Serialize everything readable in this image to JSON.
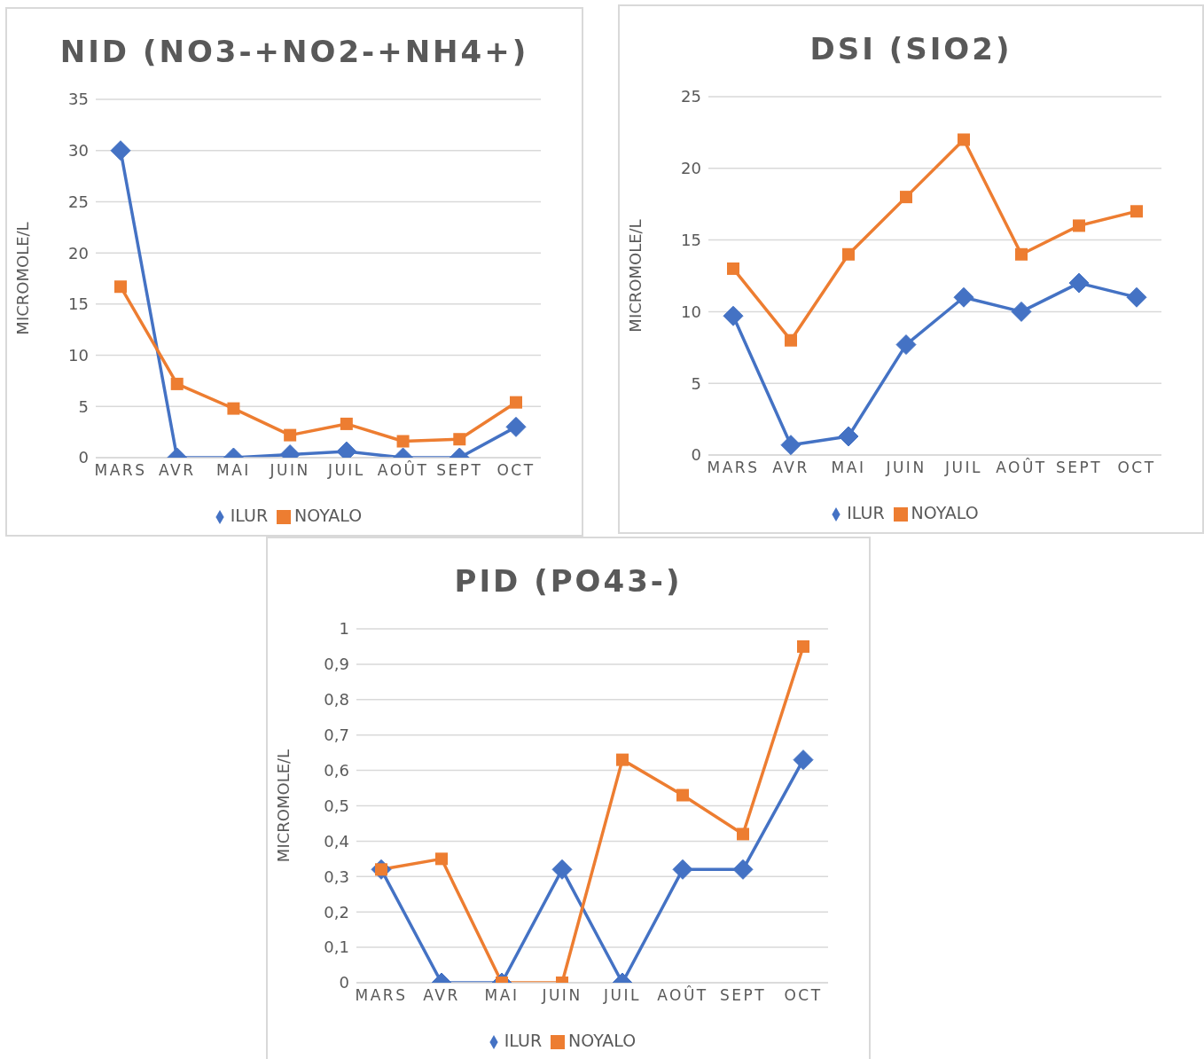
{
  "chart_data": [
    {
      "type": "line",
      "title": "NID (NO3-+NO2-+NH4+)",
      "ylabel": "MICROMOLE/L",
      "categories": [
        "MARS",
        "AVR",
        "MAI",
        "JUIN",
        "JUIL",
        "AOÛT",
        "SEPT",
        "OCT"
      ],
      "series": [
        {
          "name": "ILUR",
          "color": "#4472c4",
          "marker": "diamond",
          "values": [
            30,
            0,
            0,
            0.3,
            0.6,
            0,
            0,
            3.0
          ]
        },
        {
          "name": "NOYALO",
          "color": "#ed7d31",
          "marker": "square",
          "values": [
            16.7,
            7.2,
            4.8,
            2.2,
            3.3,
            1.6,
            1.8,
            5.4
          ]
        }
      ],
      "ylim": [
        0,
        35
      ],
      "yticks": [
        0,
        5,
        10,
        15,
        20,
        25,
        30,
        35
      ],
      "grid": "y",
      "legend": "bottom"
    },
    {
      "type": "line",
      "title": "DSI (SIO2)",
      "ylabel": "MICROMOLE/L",
      "categories": [
        "MARS",
        "AVR",
        "MAI",
        "JUIN",
        "JUIL",
        "AOÛT",
        "SEPT",
        "OCT"
      ],
      "series": [
        {
          "name": "ILUR",
          "color": "#4472c4",
          "marker": "diamond",
          "values": [
            9.7,
            0.7,
            1.3,
            7.7,
            11,
            10,
            12,
            11
          ]
        },
        {
          "name": "NOYALO",
          "color": "#ed7d31",
          "marker": "square",
          "values": [
            13,
            8,
            14,
            18,
            22,
            14,
            16,
            17
          ]
        }
      ],
      "ylim": [
        0,
        25
      ],
      "yticks": [
        0,
        5,
        10,
        15,
        20,
        25
      ],
      "grid": "y",
      "legend": "bottom"
    },
    {
      "type": "line",
      "title": "PID (PO43-)",
      "ylabel": "MICROMOLE/L",
      "categories": [
        "MARS",
        "AVR",
        "MAI",
        "JUIN",
        "JUIL",
        "AOÛT",
        "SEPT",
        "OCT"
      ],
      "series": [
        {
          "name": "ILUR",
          "color": "#4472c4",
          "marker": "diamond",
          "values": [
            0.32,
            0,
            0,
            0.32,
            0,
            0.32,
            0.32,
            0.63
          ]
        },
        {
          "name": "NOYALO",
          "color": "#ed7d31",
          "marker": "square",
          "values": [
            0.32,
            0.35,
            0,
            0,
            0.63,
            0.53,
            0.42,
            0.95
          ]
        }
      ],
      "ylim": [
        0,
        1
      ],
      "yticks": [
        0,
        {
          "value": 0.1,
          "label": "0,1"
        },
        {
          "value": 0.2,
          "label": "0,2"
        },
        {
          "value": 0.3,
          "label": "0,3"
        },
        {
          "value": 0.4,
          "label": "0,4"
        },
        {
          "value": 0.5,
          "label": "0,5"
        },
        {
          "value": 0.6,
          "label": "0,6"
        },
        {
          "value": 0.7,
          "label": "0,7"
        },
        {
          "value": 0.8,
          "label": "0,8"
        },
        {
          "value": 0.9,
          "label": "0,9"
        },
        1
      ],
      "grid": "y",
      "legend": "bottom"
    }
  ]
}
